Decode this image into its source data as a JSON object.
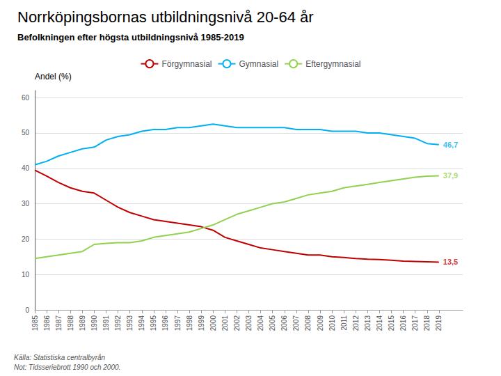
{
  "chart_data": {
    "type": "line",
    "title": "Norrköpingsbornas utbildningsnivå 20-64 år",
    "subtitle": "Befolkningen efter högsta utbildningsnivå 1985-2019",
    "ylabel": "Andel (%)",
    "source": "Källa: Statistiska centralbyrån\nNot: Tidsseriebrott 1990 och 2000.",
    "x": [
      1985,
      1986,
      1987,
      1988,
      1989,
      1990,
      1991,
      1992,
      1993,
      1994,
      1995,
      1996,
      1997,
      1998,
      1999,
      2000,
      2001,
      2002,
      2003,
      2004,
      2005,
      2006,
      2007,
      2008,
      2009,
      2010,
      2011,
      2012,
      2013,
      2014,
      2015,
      2016,
      2017,
      2018,
      2019
    ],
    "xlim": [
      1985,
      2021
    ],
    "xticks": [
      1985,
      1986,
      1987,
      1988,
      1989,
      1990,
      1991,
      1992,
      1993,
      1994,
      1995,
      1996,
      1997,
      1998,
      1999,
      2000,
      2001,
      2002,
      2003,
      2004,
      2005,
      2006,
      2007,
      2008,
      2009,
      2010,
      2011,
      2012,
      2013,
      2014,
      2015,
      2016,
      2017,
      2018,
      2019
    ],
    "ylim": [
      0,
      62
    ],
    "yticks": [
      0,
      10,
      20,
      30,
      40,
      50,
      60
    ],
    "grid": true,
    "legend": "top",
    "series": [
      {
        "name": "Förgymnasial",
        "color": "#c00000",
        "values": [
          39.5,
          37.8,
          36.0,
          34.5,
          33.5,
          33.0,
          31.0,
          29.0,
          27.5,
          26.5,
          25.5,
          25.0,
          24.5,
          24.0,
          23.5,
          22.5,
          20.5,
          19.5,
          18.5,
          17.5,
          17.0,
          16.5,
          16.0,
          15.5,
          15.5,
          15.0,
          14.8,
          14.5,
          14.3,
          14.2,
          14.0,
          13.8,
          13.7,
          13.6,
          13.5
        ]
      },
      {
        "name": "Gymnasial",
        "color": "#00b0f0",
        "values": [
          41.0,
          42.0,
          43.5,
          44.5,
          45.5,
          46.0,
          48.0,
          49.0,
          49.5,
          50.5,
          51.0,
          51.0,
          51.5,
          51.5,
          52.0,
          52.5,
          52.0,
          51.5,
          51.5,
          51.5,
          51.5,
          51.5,
          51.0,
          51.0,
          51.0,
          50.5,
          50.5,
          50.5,
          50.0,
          50.0,
          49.5,
          49.0,
          48.5,
          47.0,
          46.7
        ]
      },
      {
        "name": "Eftergymnasial",
        "color": "#92d050",
        "values": [
          14.5,
          15.0,
          15.5,
          16.0,
          16.5,
          18.5,
          18.8,
          19.0,
          19.0,
          19.5,
          20.5,
          21.0,
          21.5,
          22.0,
          23.0,
          24.0,
          25.5,
          27.0,
          28.0,
          29.0,
          30.0,
          30.5,
          31.5,
          32.5,
          33.0,
          33.5,
          34.5,
          35.0,
          35.5,
          36.0,
          36.5,
          37.0,
          37.5,
          37.8,
          37.9
        ]
      }
    ],
    "annotations": [
      {
        "text": "46,7",
        "x": 2019,
        "y": 46.7,
        "color": "#00b0f0"
      },
      {
        "text": "37,9",
        "x": 2019,
        "y": 37.9,
        "color": "#92d050"
      },
      {
        "text": "13,5",
        "x": 2019,
        "y": 13.5,
        "color": "#c00000"
      }
    ]
  }
}
